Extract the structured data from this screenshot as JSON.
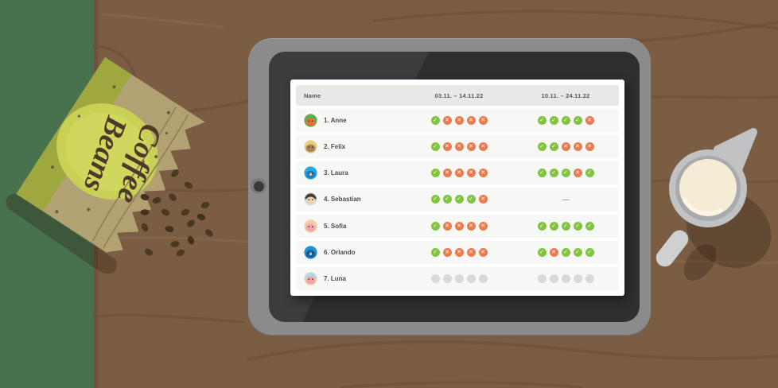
{
  "scene": {
    "bag_line1": "Coffee",
    "bag_line2": "Beans"
  },
  "colors": {
    "status_check": "#82C341",
    "status_cross": "#E97B4F",
    "status_empty": "#D9D9D8",
    "wood": "#7B5D43",
    "grass": "#48714E",
    "tablet_frame": "#8B8B8E",
    "screen": "#313134"
  },
  "icons": {
    "check_glyph": "✓",
    "cross_glyph": "✕"
  },
  "table": {
    "columns": [
      "Name",
      "03.11. – 14.11.22",
      "10.11. – 24.11.22"
    ],
    "people": [
      {
        "label": "1. Anne",
        "avatar": {
          "bg": "#5FAD50",
          "face": "#E8722D"
        },
        "week1": [
          "check",
          "cross",
          "cross",
          "cross",
          "cross"
        ],
        "week2": [
          "check",
          "check",
          "check",
          "check",
          "cross"
        ]
      },
      {
        "label": "2. Felix",
        "avatar": {
          "bg": "#E9CD7E",
          "face": "#A58455"
        },
        "week1": [
          "check",
          "cross",
          "cross",
          "cross",
          "cross"
        ],
        "week2": [
          "check",
          "check",
          "cross",
          "cross",
          "cross"
        ]
      },
      {
        "label": "3. Laura",
        "avatar": {
          "bg": "#2CA6E0",
          "face": "#1D7CC2",
          "beak": "#F6D44C"
        },
        "week1": [
          "check",
          "cross",
          "cross",
          "cross",
          "cross"
        ],
        "week2": [
          "check",
          "check",
          "check",
          "cross",
          "check"
        ]
      },
      {
        "label": "4. Sebastian",
        "avatar": {
          "bg": "#C4E4F0",
          "face": "#F2D4AC",
          "hair": "#4A3B31"
        },
        "week1": [
          "check",
          "check",
          "check",
          "check",
          "cross"
        ],
        "week2": "dash"
      },
      {
        "label": "5. Sofia",
        "avatar": {
          "bg": "#F6CBA4",
          "face": "#F2A3A9"
        },
        "week1": [
          "check",
          "cross",
          "cross",
          "cross",
          "cross"
        ],
        "week2": [
          "check",
          "check",
          "check",
          "check",
          "check"
        ]
      },
      {
        "label": "6. Orlando",
        "avatar": {
          "bg": "#1E93D8",
          "face": "#15619E",
          "beak": "#F6D44C"
        },
        "week1": [
          "check",
          "cross",
          "cross",
          "cross",
          "cross"
        ],
        "week2": [
          "check",
          "cross",
          "check",
          "check",
          "check"
        ]
      },
      {
        "label": "7. Luna",
        "avatar": {
          "bg": "#F6CBA4",
          "face": "#F2A3A9",
          "hair": "#A8DCEC"
        },
        "week1": [
          "empty",
          "empty",
          "empty",
          "empty",
          "empty"
        ],
        "week2": [
          "empty",
          "empty",
          "empty",
          "empty",
          "empty"
        ]
      }
    ],
    "dash_glyph": "—"
  }
}
